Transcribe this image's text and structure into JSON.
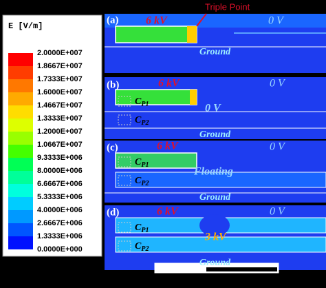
{
  "legend": {
    "title": "E [V/m]",
    "labels": [
      "2.0000E+007",
      "1.8667E+007",
      "1.7333E+007",
      "1.6000E+007",
      "1.4667E+007",
      "1.3333E+007",
      "1.2000E+007",
      "1.0667E+007",
      "9.3333E+006",
      "8.0000E+006",
      "6.6667E+006",
      "5.3333E+006",
      "4.0000E+006",
      "2.6667E+006",
      "1.3333E+006",
      "0.0000E+000"
    ],
    "colors": [
      "#ff0000",
      "#ff3c00",
      "#ff7800",
      "#ffaa00",
      "#ffdd00",
      "#ddff00",
      "#99ff00",
      "#44ff00",
      "#00ff55",
      "#00ff99",
      "#00ffdd",
      "#00ccff",
      "#0099ff",
      "#0055ff",
      "#0011ff"
    ]
  },
  "triple_point": "Triple Point",
  "panels": [
    {
      "label": "(a)",
      "high": "6 kV",
      "low": "0 V",
      "ground": "Ground"
    },
    {
      "label": "(b)",
      "high": "6 kV",
      "low": "0 V",
      "ground": "Ground",
      "middle": "0 V",
      "cp1": {
        "main": "C",
        "sub": "P1"
      },
      "cp2": {
        "main": "C",
        "sub": "P2"
      }
    },
    {
      "label": "(c)",
      "high": "6 kV",
      "low": "0 V",
      "ground": "Ground",
      "middle": "Floating",
      "cp1": {
        "main": "C",
        "sub": "P1"
      },
      "cp2": {
        "main": "C",
        "sub": "P2"
      }
    },
    {
      "label": "(d)",
      "high": "6 kV",
      "low": "0 V",
      "ground": "Ground",
      "middle": "3 kV",
      "cp1": {
        "main": "C",
        "sub": "P1"
      },
      "cp2": {
        "main": "C",
        "sub": "P2"
      }
    }
  ]
}
